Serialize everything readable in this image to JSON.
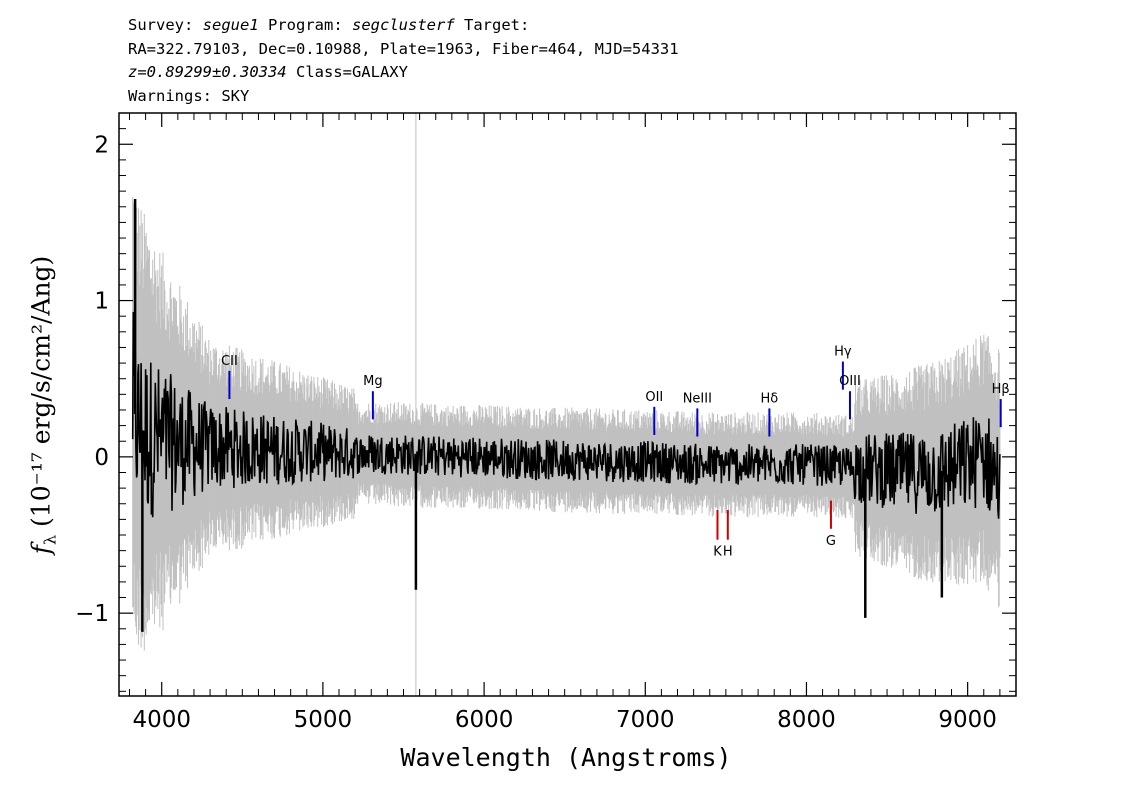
{
  "header": {
    "survey_label": "Survey:",
    "survey": "segue1",
    "program_label": "Program:",
    "program": "segclusterf",
    "target_label": "Target:",
    "line2": "RA=322.79103, Dec=0.10988, Plate=1963, Fiber=464, MJD=54331",
    "redshift": "z=0.89299±0.30334",
    "class_text": "Class=GALAXY",
    "warnings": "Warnings: SKY"
  },
  "chart_data": {
    "type": "line",
    "title": "",
    "xlabel": "Wavelength (Angstroms)",
    "ylabel_prefix": "f",
    "ylabel_sub": "λ",
    "ylabel_rest": " (10⁻¹⁷ erg/s/cm²/Ang)",
    "xlim": [
      3735,
      9300
    ],
    "ylim": [
      -1.53,
      2.2
    ],
    "x_ticks": [
      4000,
      5000,
      6000,
      7000,
      8000,
      9000
    ],
    "x_tick_labels": [
      "4000",
      "5000",
      "6000",
      "7000",
      "8000",
      "9000"
    ],
    "y_ticks": [
      -1,
      0,
      1,
      2
    ],
    "y_tick_labels": [
      "−1",
      "0",
      "1",
      "2"
    ],
    "grid": false,
    "colors": {
      "flux": "#000000",
      "error": "#c0c0c0",
      "emission_line": "#0000cc",
      "absorption_line": "#cc0000"
    },
    "series": [
      {
        "name": "flux",
        "x": [
          3820,
          3850,
          3900,
          4000,
          4100,
          4200,
          4300,
          4400,
          4500,
          4600,
          4800,
          5000,
          5200,
          5400,
          5600,
          5800,
          6000,
          6200,
          6400,
          6600,
          6800,
          7000,
          7200,
          7400,
          7600,
          7800,
          8000,
          8200,
          8400,
          8600,
          8800,
          9000,
          9100,
          9200
        ],
        "y": [
          0.35,
          0.2,
          0.15,
          0.1,
          0.08,
          0.07,
          0.06,
          0.06,
          0.05,
          0.05,
          0.04,
          0.03,
          0.02,
          0.02,
          0.01,
          0.0,
          0.0,
          -0.01,
          -0.02,
          -0.02,
          -0.03,
          -0.03,
          -0.04,
          -0.05,
          -0.05,
          -0.05,
          -0.05,
          -0.06,
          -0.08,
          -0.1,
          -0.1,
          -0.05,
          0.0,
          -0.15
        ]
      }
    ],
    "spikes": [
      {
        "x": 3835,
        "y": 1.65
      },
      {
        "x": 3880,
        "y": -1.12
      },
      {
        "x": 5577,
        "y": -0.85
      },
      {
        "x": 8365,
        "y": -1.03
      },
      {
        "x": 8840,
        "y": -0.9
      }
    ],
    "line_markers": [
      {
        "label": "CII",
        "x": 4420,
        "y0": 0.37,
        "y1": 0.55,
        "kind": "emission"
      },
      {
        "label": "Mg",
        "x": 5310,
        "y0": 0.24,
        "y1": 0.42,
        "kind": "emission"
      },
      {
        "label": "OII",
        "x": 7056,
        "y0": 0.14,
        "y1": 0.32,
        "kind": "emission"
      },
      {
        "label": "NeIII",
        "x": 7323,
        "y0": 0.13,
        "y1": 0.31,
        "kind": "emission"
      },
      {
        "label": "Hδ",
        "x": 7770,
        "y0": 0.13,
        "y1": 0.31,
        "kind": "emission"
      },
      {
        "label": "Hγ",
        "x": 8226,
        "y0": 0.43,
        "y1": 0.61,
        "kind": "emission"
      },
      {
        "label": "OIII",
        "x": 8270,
        "y0": 0.24,
        "y1": 0.42,
        "kind": "emission"
      },
      {
        "label": "Hβ",
        "x": 9205,
        "y0": 0.19,
        "y1": 0.37,
        "kind": "emission"
      },
      {
        "label": "K",
        "x": 7448,
        "y0": -0.53,
        "y1": -0.34,
        "kind": "absorption"
      },
      {
        "label": "H",
        "x": 7512,
        "y0": -0.53,
        "y1": -0.34,
        "kind": "absorption"
      },
      {
        "label": "G",
        "x": 8152,
        "y0": -0.46,
        "y1": -0.28,
        "kind": "absorption"
      }
    ]
  }
}
